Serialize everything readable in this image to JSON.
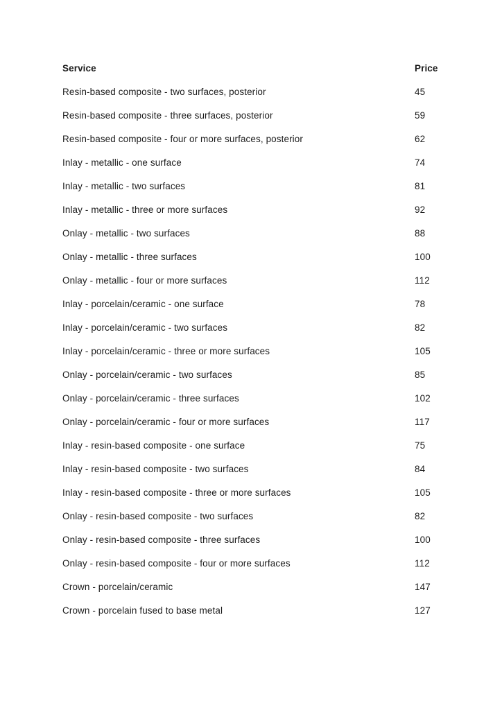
{
  "colors": {
    "text": "#1c1c1c",
    "background": "#ffffff"
  },
  "document": {
    "table": {
      "headers": {
        "service": "Service",
        "price": "Price"
      },
      "rows": [
        {
          "service": "Resin-based composite - two surfaces, posterior",
          "price": "45"
        },
        {
          "service": "Resin-based composite - three surfaces, posterior",
          "price": "59"
        },
        {
          "service": "Resin-based composite - four or more surfaces, posterior",
          "price": "62"
        },
        {
          "service": "Inlay - metallic - one surface",
          "price": "74"
        },
        {
          "service": "Inlay - metallic - two surfaces",
          "price": "81"
        },
        {
          "service": "Inlay - metallic - three or more surfaces",
          "price": "92"
        },
        {
          "service": "Onlay - metallic - two surfaces",
          "price": "88"
        },
        {
          "service": "Onlay - metallic - three surfaces",
          "price": "100"
        },
        {
          "service": "Onlay - metallic - four or more surfaces",
          "price": "112"
        },
        {
          "service": "Inlay - porcelain/ceramic - one surface",
          "price": "78"
        },
        {
          "service": "Inlay - porcelain/ceramic - two surfaces",
          "price": "82"
        },
        {
          "service": "Inlay - porcelain/ceramic - three or more surfaces",
          "price": "105"
        },
        {
          "service": "Onlay - porcelain/ceramic - two surfaces",
          "price": "85"
        },
        {
          "service": "Onlay - porcelain/ceramic - three surfaces",
          "price": "102"
        },
        {
          "service": "Onlay - porcelain/ceramic - four or more surfaces",
          "price": "117"
        },
        {
          "service": "Inlay - resin-based composite - one surface",
          "price": "75"
        },
        {
          "service": "Inlay - resin-based composite - two surfaces",
          "price": "84"
        },
        {
          "service": "Inlay - resin-based composite - three or more surfaces",
          "price": "105"
        },
        {
          "service": "Onlay - resin-based composite - two surfaces",
          "price": "82"
        },
        {
          "service": "Onlay - resin-based composite - three surfaces",
          "price": "100"
        },
        {
          "service": "Onlay - resin-based composite - four or more surfaces",
          "price": "112"
        },
        {
          "service": "Crown - porcelain/ceramic",
          "price": "147"
        },
        {
          "service": "Crown - porcelain fused to base metal",
          "price": "127"
        }
      ]
    }
  }
}
